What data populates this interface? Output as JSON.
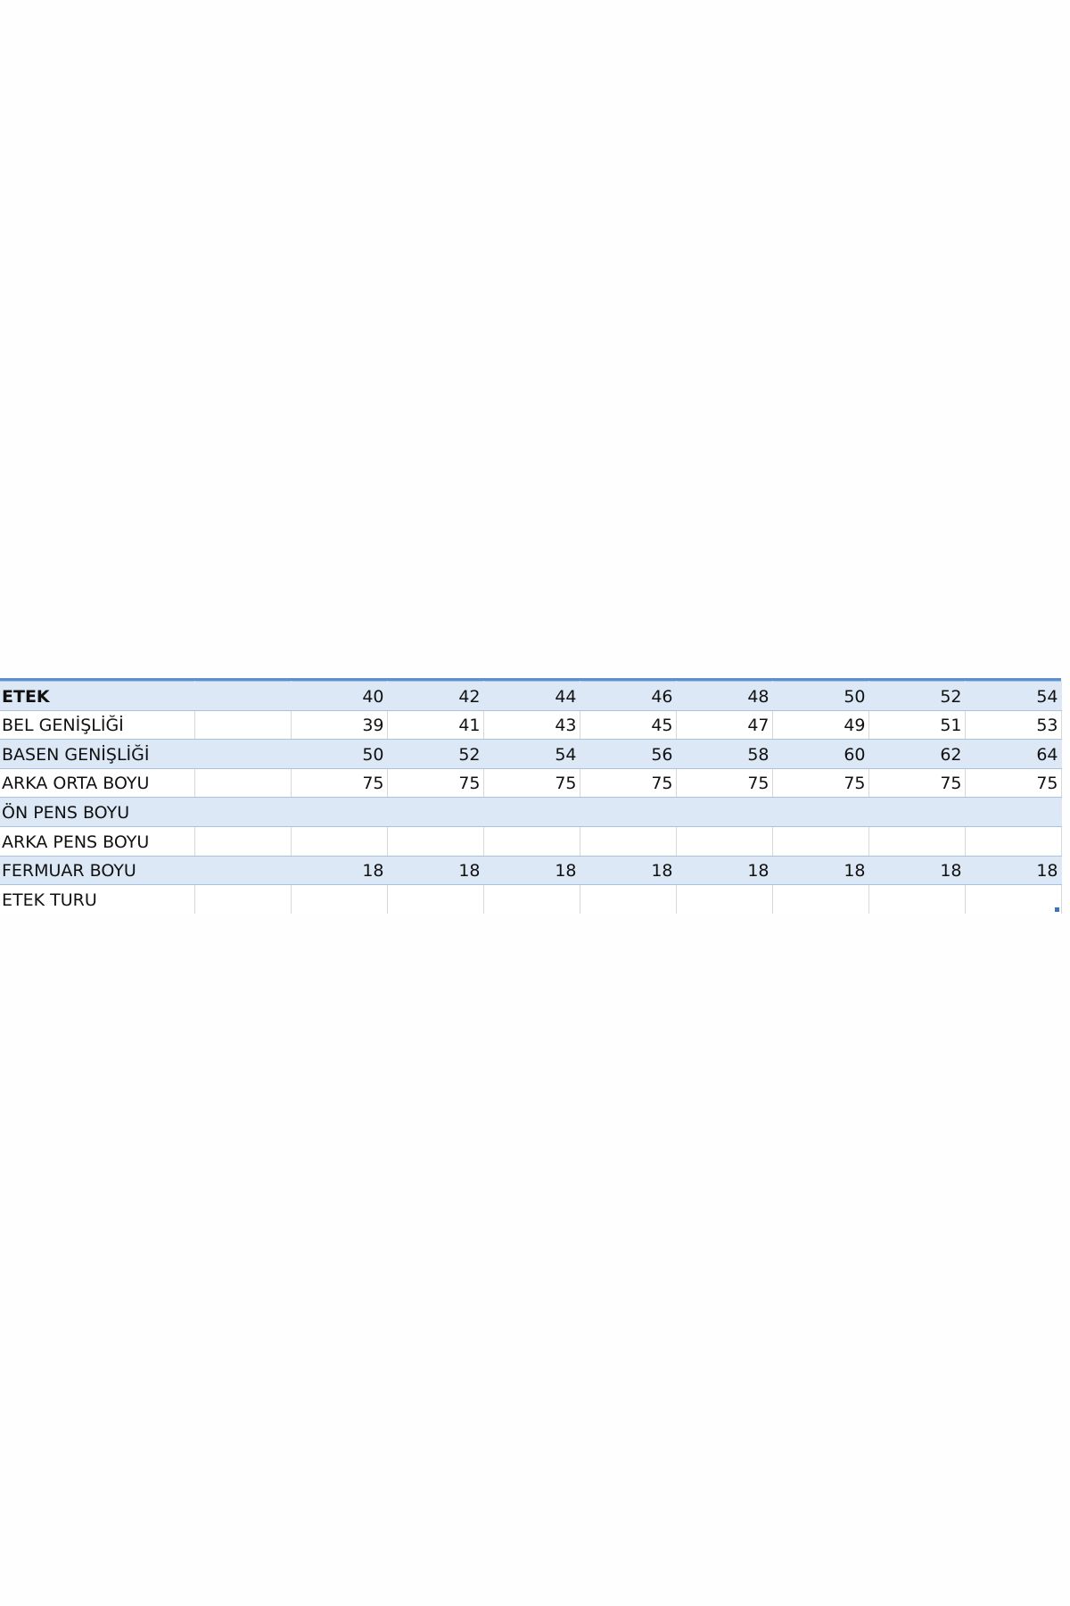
{
  "table": {
    "header": {
      "label": "ETEK",
      "sizes": [
        "",
        "40",
        "42",
        "44",
        "46",
        "48",
        "50",
        "52",
        "54"
      ]
    },
    "rows": [
      {
        "label": "BEL GENİŞLİĞİ",
        "values": [
          "",
          "39",
          "41",
          "43",
          "45",
          "47",
          "49",
          "51",
          "53"
        ]
      },
      {
        "label": "BASEN GENİŞLİĞİ",
        "values": [
          "",
          "50",
          "52",
          "54",
          "56",
          "58",
          "60",
          "62",
          "64"
        ]
      },
      {
        "label": "ARKA ORTA BOYU",
        "values": [
          "",
          "75",
          "75",
          "75",
          "75",
          "75",
          "75",
          "75",
          "75"
        ]
      },
      {
        "label": "ÖN PENS BOYU",
        "values": [
          "",
          "",
          "",
          "",
          "",
          "",
          "",
          "",
          ""
        ]
      },
      {
        "label": "ARKA PENS BOYU",
        "values": [
          "",
          "",
          "",
          "",
          "",
          "",
          "",
          "",
          ""
        ]
      },
      {
        "label": "FERMUAR BOYU",
        "values": [
          "",
          "18",
          "18",
          "18",
          "18",
          "18",
          "18",
          "18",
          "18"
        ]
      },
      {
        "label": "ETEK TURU",
        "values": [
          "",
          "",
          "",
          "",
          "",
          "",
          "",
          "",
          ""
        ]
      }
    ]
  },
  "colors": {
    "band_fill": "#dce8f5",
    "header_rule": "#5b8fd0",
    "grid_line": "#d8d8d8"
  }
}
